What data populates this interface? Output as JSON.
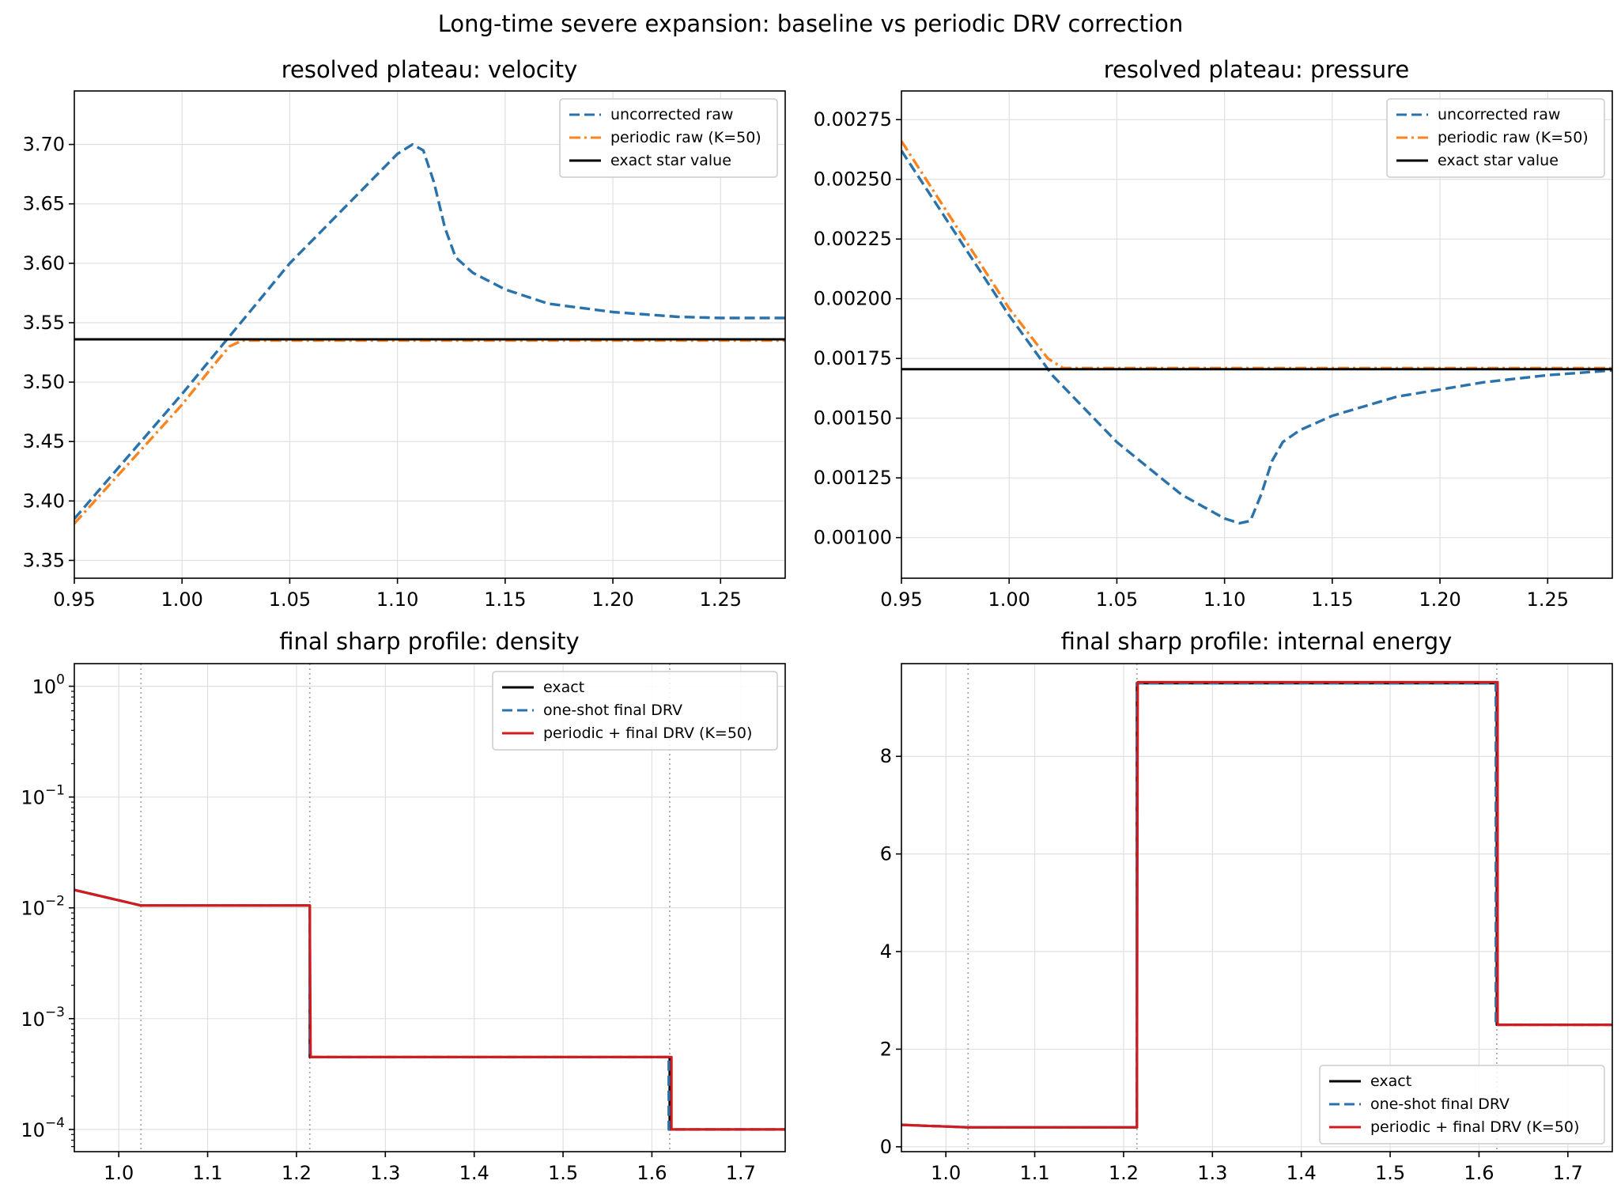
{
  "figure": {
    "title": "Long-time severe expansion: baseline vs periodic DRV correction"
  },
  "colors": {
    "blue": "#2a72ab",
    "orange": "#fb8320",
    "black": "#000000",
    "red": "#d7191c",
    "vline": "#aaaaaa"
  },
  "chart_data": [
    {
      "id": "velocity",
      "type": "line",
      "title": "resolved plateau: velocity",
      "xlim": [
        0.95,
        1.28
      ],
      "ylim": [
        3.335,
        3.745
      ],
      "xscale": "linear",
      "yscale": "linear",
      "xticks": [
        0.95,
        1.0,
        1.05,
        1.1,
        1.15,
        1.2,
        1.25
      ],
      "xtick_labels": [
        "0.95",
        "1.00",
        "1.05",
        "1.10",
        "1.15",
        "1.20",
        "1.25"
      ],
      "yticks": [
        3.35,
        3.4,
        3.45,
        3.5,
        3.55,
        3.6,
        3.65,
        3.7
      ],
      "ytick_labels": [
        "3.35",
        "3.40",
        "3.45",
        "3.50",
        "3.55",
        "3.60",
        "3.65",
        "3.70"
      ],
      "legend_loc": "upper right",
      "series": [
        {
          "name": "uncorrected raw",
          "color": "blue",
          "style": "dashed",
          "x": [
            0.95,
            1.0,
            1.05,
            1.1,
            1.107,
            1.112,
            1.117,
            1.122,
            1.127,
            1.135,
            1.15,
            1.17,
            1.2,
            1.23,
            1.25,
            1.28
          ],
          "y": [
            3.385,
            3.49,
            3.6,
            3.692,
            3.7,
            3.695,
            3.668,
            3.63,
            3.605,
            3.592,
            3.578,
            3.566,
            3.559,
            3.555,
            3.554,
            3.554
          ]
        },
        {
          "name": "periodic raw (K=50)",
          "color": "orange",
          "style": "dashdot",
          "x": [
            0.95,
            1.0,
            1.015,
            1.022,
            1.028,
            1.28
          ],
          "y": [
            3.381,
            3.481,
            3.515,
            3.53,
            3.535,
            3.535
          ]
        },
        {
          "name": "exact star value",
          "color": "black",
          "style": "solid",
          "x": [
            0.95,
            1.28
          ],
          "y": [
            3.536,
            3.536
          ]
        }
      ]
    },
    {
      "id": "pressure",
      "type": "line",
      "title": "resolved plateau: pressure",
      "xlim": [
        0.95,
        1.28
      ],
      "ylim": [
        0.00083,
        0.00287
      ],
      "xscale": "linear",
      "yscale": "linear",
      "xticks": [
        0.95,
        1.0,
        1.05,
        1.1,
        1.15,
        1.2,
        1.25
      ],
      "xtick_labels": [
        "0.95",
        "1.00",
        "1.05",
        "1.10",
        "1.15",
        "1.20",
        "1.25"
      ],
      "yticks": [
        0.001,
        0.00125,
        0.0015,
        0.00175,
        0.002,
        0.00225,
        0.0025,
        0.00275
      ],
      "ytick_labels": [
        "0.00100",
        "0.00125",
        "0.00150",
        "0.00175",
        "0.00200",
        "0.00225",
        "0.00250",
        "0.00275"
      ],
      "legend_loc": "upper right",
      "series": [
        {
          "name": "uncorrected raw",
          "color": "blue",
          "style": "dashed",
          "x": [
            0.95,
            1.0,
            1.02,
            1.05,
            1.08,
            1.1,
            1.107,
            1.112,
            1.117,
            1.122,
            1.127,
            1.135,
            1.15,
            1.18,
            1.22,
            1.25,
            1.28
          ],
          "y": [
            0.00262,
            0.00193,
            0.00168,
            0.0014,
            0.00118,
            0.00108,
            0.00106,
            0.00107,
            0.00118,
            0.00132,
            0.0014,
            0.00145,
            0.00151,
            0.00159,
            0.00165,
            0.00168,
            0.0017
          ]
        },
        {
          "name": "periodic raw (K=50)",
          "color": "orange",
          "style": "dashdot",
          "x": [
            0.95,
            1.0,
            1.018,
            1.025,
            1.28
          ],
          "y": [
            0.00266,
            0.00196,
            0.00175,
            0.00171,
            0.00171
          ]
        },
        {
          "name": "exact star value",
          "color": "black",
          "style": "solid",
          "x": [
            0.95,
            1.28
          ],
          "y": [
            0.001705,
            0.001705
          ]
        }
      ]
    },
    {
      "id": "density",
      "type": "line",
      "title": "final sharp profile: density",
      "xlim": [
        0.95,
        1.75
      ],
      "ylim": [
        6.3e-05,
        1.6
      ],
      "xscale": "linear",
      "yscale": "log",
      "xticks": [
        1.0,
        1.1,
        1.2,
        1.3,
        1.4,
        1.5,
        1.6,
        1.7
      ],
      "xtick_labels": [
        "1.0",
        "1.1",
        "1.2",
        "1.3",
        "1.4",
        "1.5",
        "1.6",
        "1.7"
      ],
      "yticks": [
        0.0001,
        0.001,
        0.01,
        0.1,
        1
      ],
      "ytick_labels": [
        {
          "base": "10",
          "exp": "−4"
        },
        {
          "base": "10",
          "exp": "−3"
        },
        {
          "base": "10",
          "exp": "−2"
        },
        {
          "base": "10",
          "exp": "−1"
        },
        {
          "base": "10",
          "exp": "0"
        }
      ],
      "vlines": [
        1.025,
        1.215,
        1.62
      ],
      "legend_loc": "upper right",
      "series": [
        {
          "name": "exact",
          "color": "black",
          "style": "solid",
          "x": [
            0.95,
            1.025,
            1.215,
            1.215,
            1.62,
            1.62,
            1.75
          ],
          "y": [
            0.0145,
            0.0105,
            0.0105,
            0.00045,
            0.00045,
            0.0001,
            0.0001
          ]
        },
        {
          "name": "one-shot final DRV",
          "color": "blue",
          "style": "dashed",
          "x": [
            0.95,
            1.025,
            1.215,
            1.215,
            1.619,
            1.619,
            1.75
          ],
          "y": [
            0.0145,
            0.0105,
            0.0105,
            0.00045,
            0.00045,
            0.0001,
            0.0001
          ]
        },
        {
          "name": "periodic + final DRV (K=50)",
          "color": "red",
          "style": "solid",
          "x": [
            0.95,
            1.025,
            1.215,
            1.216,
            1.622,
            1.622,
            1.75
          ],
          "y": [
            0.0145,
            0.0105,
            0.0105,
            0.00045,
            0.00045,
            0.0001,
            0.0001
          ]
        }
      ]
    },
    {
      "id": "energy",
      "type": "line",
      "title": "final sharp profile: internal energy",
      "xlim": [
        0.95,
        1.75
      ],
      "ylim": [
        -0.1,
        9.9
      ],
      "xscale": "linear",
      "yscale": "linear",
      "xticks": [
        1.0,
        1.1,
        1.2,
        1.3,
        1.4,
        1.5,
        1.6,
        1.7
      ],
      "xtick_labels": [
        "1.0",
        "1.1",
        "1.2",
        "1.3",
        "1.4",
        "1.5",
        "1.6",
        "1.7"
      ],
      "yticks": [
        0,
        2,
        4,
        6,
        8
      ],
      "ytick_labels": [
        "0",
        "2",
        "4",
        "6",
        "8"
      ],
      "vlines": [
        1.025,
        1.215,
        1.62
      ],
      "legend_loc": "lower right",
      "series": [
        {
          "name": "exact",
          "color": "black",
          "style": "solid",
          "x": [
            0.95,
            1.025,
            1.215,
            1.215,
            1.62,
            1.62,
            1.75
          ],
          "y": [
            0.45,
            0.4,
            0.4,
            9.5,
            9.5,
            2.5,
            2.5
          ]
        },
        {
          "name": "one-shot final DRV",
          "color": "blue",
          "style": "dashed",
          "x": [
            0.95,
            1.025,
            1.215,
            1.215,
            1.619,
            1.619,
            1.75
          ],
          "y": [
            0.45,
            0.4,
            0.4,
            9.5,
            9.5,
            2.5,
            2.5
          ]
        },
        {
          "name": "periodic + final DRV (K=50)",
          "color": "red",
          "style": "solid",
          "x": [
            0.95,
            1.025,
            1.215,
            1.216,
            1.621,
            1.621,
            1.75
          ],
          "y": [
            0.45,
            0.4,
            0.4,
            9.52,
            9.52,
            2.5,
            2.5
          ]
        }
      ]
    }
  ]
}
